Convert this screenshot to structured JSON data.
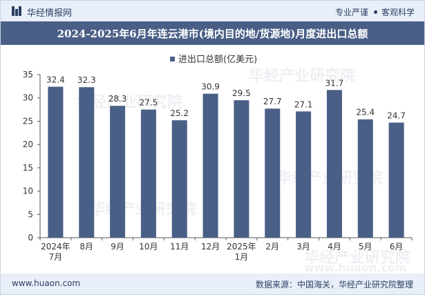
{
  "header": {
    "brand": "华经情报网",
    "tag1": "专业严谨",
    "tag2": "客观科学"
  },
  "watermarks": {
    "cn": "华经产业研究院",
    "url": "www.huaon.com"
  },
  "chart_data": {
    "type": "bar",
    "title": "2024-2025年6月年连云港市(境内目的地/货源地)月度进出口总额",
    "legend": "进出口总额(亿美元)",
    "xlabel": "",
    "ylabel": "",
    "ylim": [
      0,
      35
    ],
    "yticks": [
      0,
      5,
      10,
      15,
      20,
      25,
      30,
      35
    ],
    "categories": [
      [
        "2024年",
        "7月"
      ],
      [
        "8月"
      ],
      [
        "9月"
      ],
      [
        "10月"
      ],
      [
        "11月"
      ],
      [
        "12月"
      ],
      [
        "2025年",
        "1月"
      ],
      [
        "2月"
      ],
      [
        "3月"
      ],
      [
        "4月"
      ],
      [
        "5月"
      ],
      [
        "6月"
      ]
    ],
    "values": [
      32.4,
      32.3,
      28.3,
      27.5,
      25.2,
      30.9,
      29.5,
      27.7,
      27.1,
      31.7,
      25.4,
      24.7
    ],
    "value_labels": [
      "32.4",
      "32.3",
      "28.3",
      "27.5",
      "25.2",
      "30.9",
      "29.5",
      "27.7",
      "27.1",
      "31.7",
      "25.4",
      "24.7"
    ],
    "bar_color": "#4a5f86",
    "grid": false
  },
  "footer": {
    "site": "www.huaon.com",
    "source": "数据来源：中国海关，华经产业研究院整理"
  }
}
